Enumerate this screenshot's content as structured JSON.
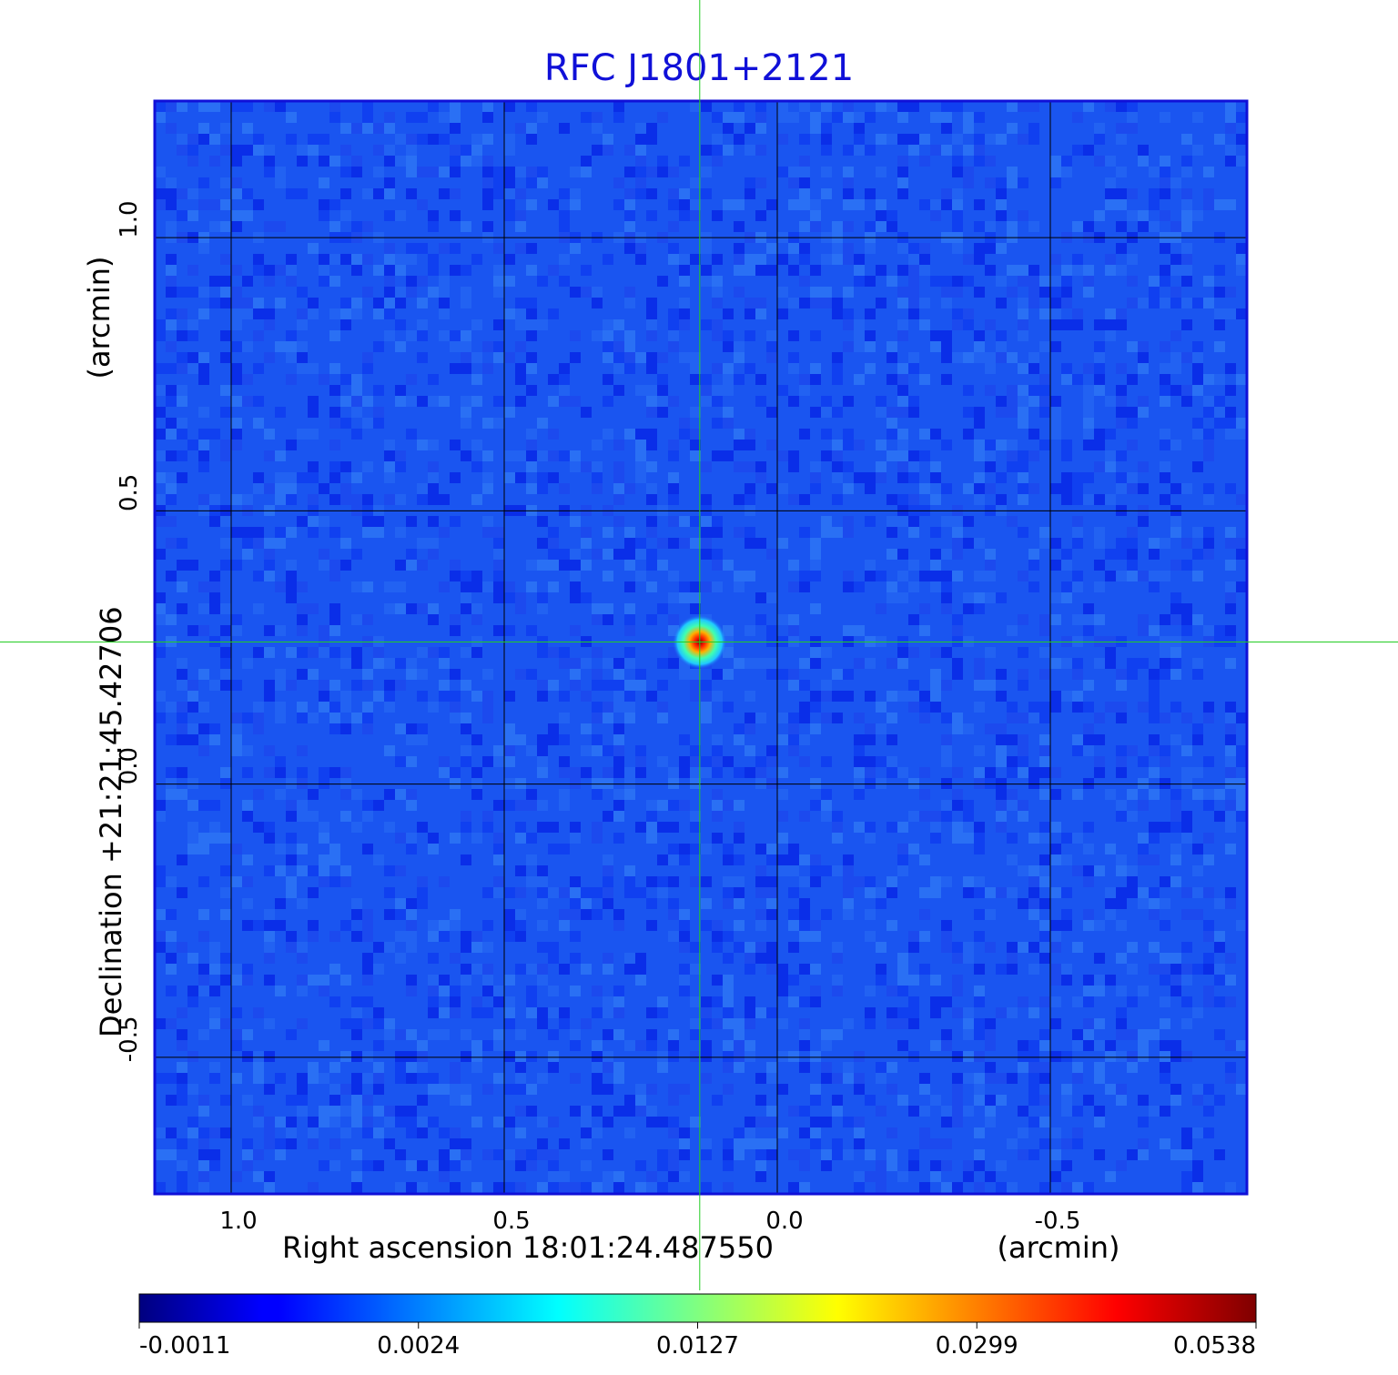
{
  "chart_data": {
    "type": "heatmap",
    "title": "RFC J1801+2121",
    "xlabel": "Right ascension  18:01:24.487550",
    "xunit": "(arcmin)",
    "ylabel": "Declination  +21:21:45.42706",
    "yunit": "(arcmin)",
    "x_ticks": [
      1.0,
      0.5,
      0.0,
      -0.5
    ],
    "x_tick_labels": [
      "1.0",
      "0.5",
      "0.0",
      "-0.5"
    ],
    "y_ticks": [
      1.0,
      0.5,
      0.0,
      -0.5
    ],
    "y_tick_labels": [
      "1.0",
      "0.5",
      "0.0",
      "-0.5"
    ],
    "xlim": [
      1.14,
      -0.86
    ],
    "ylim": [
      -0.75,
      1.25
    ],
    "x_reversed": true,
    "grid": true,
    "source": {
      "ra_offset": 0.142,
      "dec_offset": 0.26,
      "peak": 0.0538
    },
    "crosshair": {
      "ra_offset": 0.142,
      "dec_offset": 0.26,
      "color": "#22cc22"
    },
    "colorbar": {
      "colormap": "jet",
      "tick_values": [
        -0.0011,
        0.0024,
        0.0127,
        0.0299,
        0.0538
      ],
      "tick_labels": [
        "-0.0011",
        "0.0024",
        "0.0127",
        "0.0299",
        "0.0538"
      ]
    },
    "background_color": "#1a55f0",
    "grid_color": "#000000"
  }
}
